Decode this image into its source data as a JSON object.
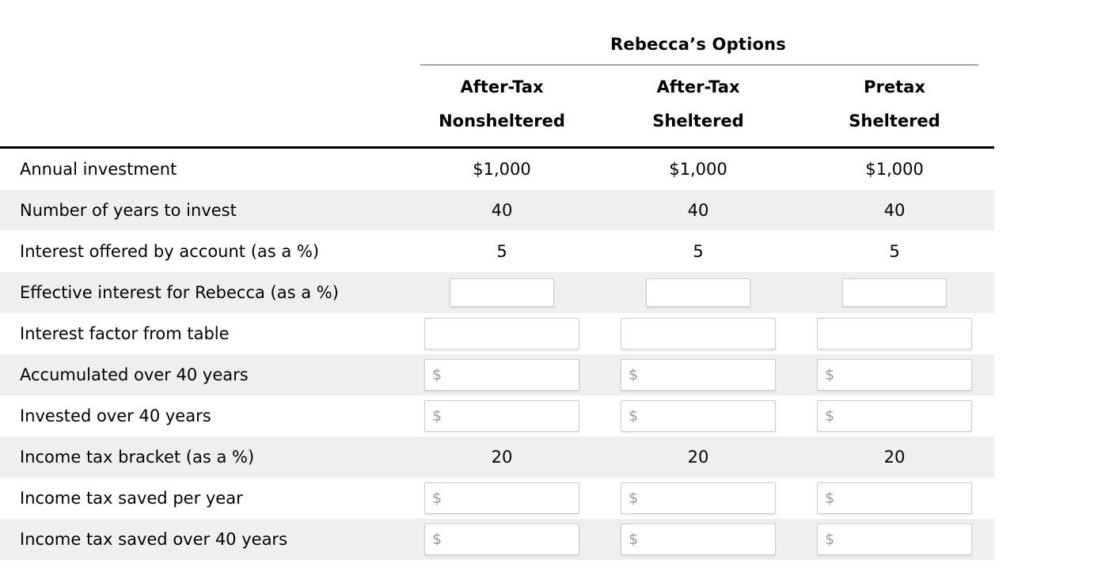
{
  "table": {
    "title": "Rebecca’s Options",
    "columns": [
      {
        "line1": "After-Tax",
        "line2": "Nonsheltered"
      },
      {
        "line1": "After-Tax",
        "line2": "Sheltered"
      },
      {
        "line1": "Pretax",
        "line2": "Sheltered"
      }
    ],
    "rows": [
      {
        "key": "annual-investment",
        "label": "Annual investment",
        "type": "static",
        "values": [
          "$1,000",
          "$1,000",
          "$1,000"
        ]
      },
      {
        "key": "years-to-invest",
        "label": "Number of years to invest",
        "type": "static",
        "values": [
          "40",
          "40",
          "40"
        ]
      },
      {
        "key": "interest-offered",
        "label": "Interest offered by account (as a %)",
        "type": "static",
        "values": [
          "5",
          "5",
          "5"
        ]
      },
      {
        "key": "effective-interest",
        "label": "Effective interest for Rebecca (as a %)",
        "type": "input-small",
        "values": [
          "",
          "",
          ""
        ],
        "placeholder": ""
      },
      {
        "key": "interest-factor",
        "label": "Interest factor from table",
        "type": "input",
        "values": [
          "",
          "",
          ""
        ],
        "placeholder": ""
      },
      {
        "key": "accumulated",
        "label": "Accumulated over 40 years",
        "type": "input-money",
        "values": [
          "",
          "",
          ""
        ],
        "placeholder": "$"
      },
      {
        "key": "invested",
        "label": "Invested over 40 years",
        "type": "input-money",
        "values": [
          "",
          "",
          ""
        ],
        "placeholder": "$"
      },
      {
        "key": "tax-bracket",
        "label": "Income tax bracket (as a %)",
        "type": "static",
        "values": [
          "20",
          "20",
          "20"
        ]
      },
      {
        "key": "tax-saved-year",
        "label": "Income tax saved per year",
        "type": "input-money",
        "values": [
          "",
          "",
          ""
        ],
        "placeholder": "$"
      },
      {
        "key": "tax-saved-total",
        "label": "Income tax saved over 40 years",
        "type": "input-money",
        "values": [
          "",
          "",
          ""
        ],
        "placeholder": "$"
      }
    ],
    "colors": {
      "row_alt_bg": "#efefef",
      "input_border": "#cccccc",
      "placeholder_text": "#9a9a9a",
      "title_rule": "#a6a6a6",
      "header_rule": "#000000"
    }
  }
}
